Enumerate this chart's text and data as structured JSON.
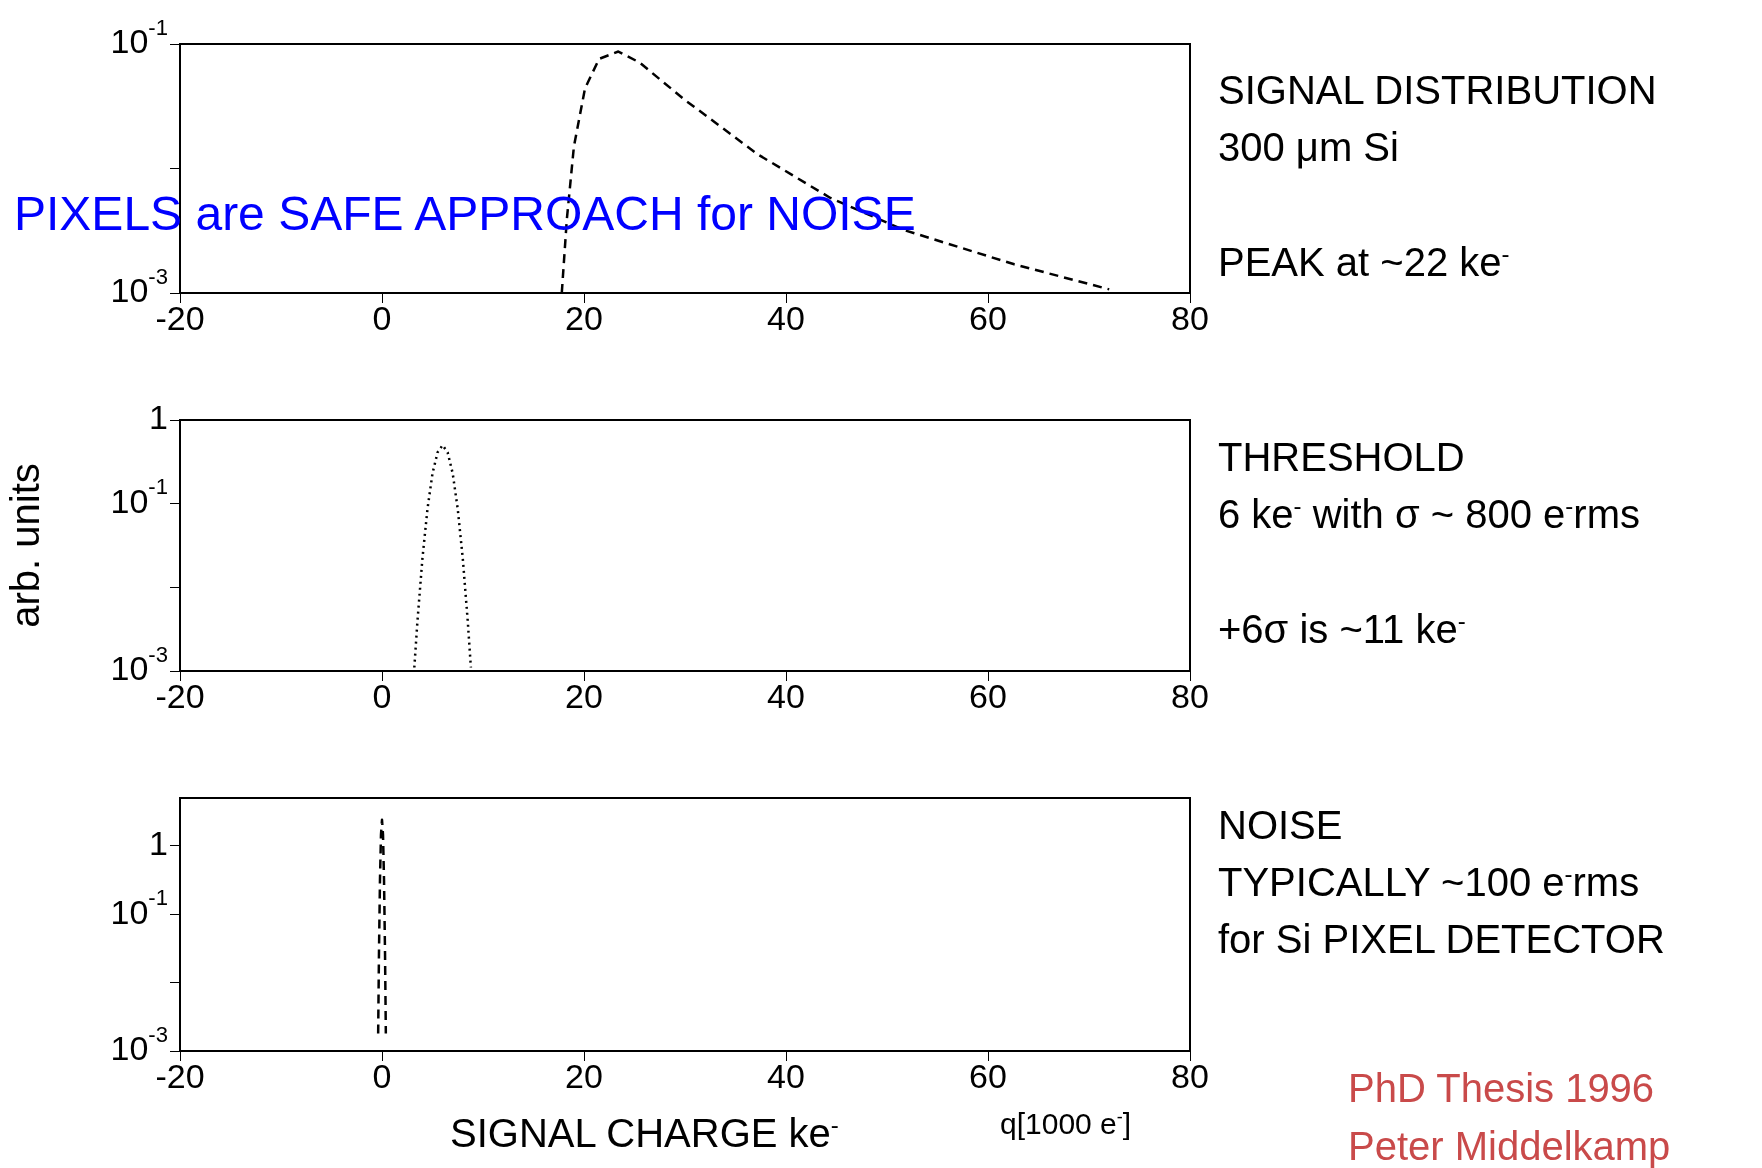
{
  "chart_data": [
    {
      "type": "line",
      "x": [
        17.8,
        18.3,
        19.0,
        20.1,
        21.5,
        23.4,
        25.5,
        29.9,
        37.2,
        44.4,
        51.7,
        62.6,
        72.0
      ],
      "values": [
        0.001,
        0.0039,
        0.015,
        0.044,
        0.076,
        0.087,
        0.071,
        0.036,
        0.013,
        0.0058,
        0.0032,
        0.0017,
        0.00107
      ],
      "color": "#000000",
      "line_style": "dashed",
      "marker": "none",
      "log": "y",
      "grid": false,
      "legend": false,
      "xlim": [
        -20,
        80
      ],
      "xticks": [
        -20,
        0,
        20,
        40,
        60,
        80
      ],
      "ylim": [
        0.001,
        0.1
      ],
      "yticks": [
        {
          "value": 0.001,
          "label": "10$^{-3}$"
        },
        {
          "value": 0.01,
          "label": null
        },
        {
          "value": 0.1,
          "label": "10$^{-1}$"
        }
      ],
      "annotations": [
        "SIGNAL DISTRIBUTION",
        "300 μm Si",
        "PEAK at  ~22 ke$^{-}$",
        "PIXELS are SAFE APPROACH for NOISE"
      ]
    },
    {
      "type": "line",
      "x": [
        3.2,
        3.5,
        4,
        4.5,
        5,
        5.5,
        6,
        6.5,
        7,
        7.5,
        8,
        8.5,
        8.8
      ],
      "values": [
        0.0011,
        0.0038,
        0.022,
        0.086,
        0.23,
        0.41,
        0.5,
        0.41,
        0.23,
        0.086,
        0.022,
        0.0038,
        0.0011
      ],
      "color": "#000000",
      "line_style": "dotted",
      "marker": "none",
      "log": "y",
      "grid": false,
      "legend": false,
      "xlim": [
        -20,
        80
      ],
      "xticks": [
        -20,
        0,
        20,
        40,
        60,
        80
      ],
      "ylim": [
        0.001,
        1
      ],
      "yticks": [
        {
          "value": 0.001,
          "label": "10$^{-3}$"
        },
        {
          "value": 0.01,
          "label": null
        },
        {
          "value": 0.1,
          "label": "10$^{-1}$"
        },
        1
      ],
      "ylabel": "arb. units",
      "annotations": [
        "THRESHOLD",
        "6 ke$^{-}$ with σ ~ 800 e$^{-}$rms",
        "+6σ  is ~11 ke$^{-}$"
      ]
    },
    {
      "type": "line",
      "x": [
        -0.38,
        -0.3,
        -0.2,
        -0.1,
        0,
        0.1,
        0.2,
        0.3,
        0.38
      ],
      "values": [
        0.0018,
        0.027,
        0.32,
        1.46,
        2.4,
        1.46,
        0.32,
        0.027,
        0.0018
      ],
      "color": "#000000",
      "line_style": "dashed",
      "marker": "none",
      "log": "y",
      "grid": false,
      "legend": false,
      "xlim": [
        -20,
        80
      ],
      "xticks": [
        -20,
        0,
        20,
        40,
        60,
        80
      ],
      "ylim": [
        0.001,
        5
      ],
      "yticks": [
        {
          "value": 0.001,
          "label": "10$^{-3}$"
        },
        {
          "value": 0.01,
          "label": null
        },
        {
          "value": 0.1,
          "label": "10$^{-1}$"
        },
        1
      ],
      "xlabel": "SIGNAL CHARGE ke$^{-}$",
      "annotations": [
        "NOISE",
        "TYPICALLY  ~100 e$^{-}$rms",
        "for Si PIXEL DETECTOR",
        "q[1000 e$^{-}$]",
        "PhD Thesis 1996",
        "Peter Middelkamp"
      ]
    }
  ]
}
